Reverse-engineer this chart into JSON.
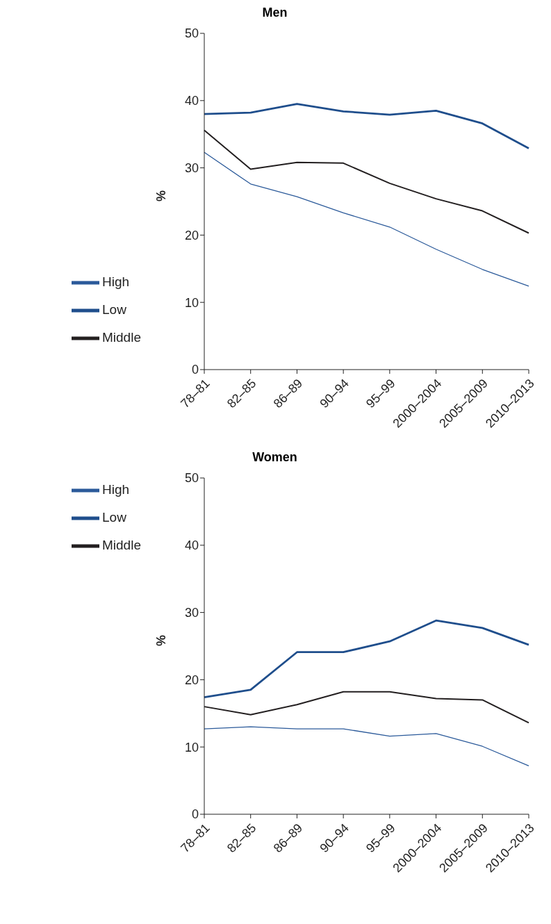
{
  "chart_data": [
    {
      "type": "line",
      "title": "Men",
      "ylabel": "%",
      "categories": [
        "78–81",
        "82–85",
        "86–89",
        "90–94",
        "95–99",
        "2000–2004",
        "2005–2009",
        "2010–2013"
      ],
      "ylim": [
        0,
        50
      ],
      "yticks": [
        0,
        10,
        20,
        30,
        40,
        50
      ],
      "legend": "bottom left",
      "grid": false,
      "marker": "none",
      "line_style": "solid",
      "series": [
        {
          "name": "Low",
          "color": "#1f4e8c",
          "values": [
            38.0,
            38.2,
            39.5,
            38.4,
            37.9,
            38.5,
            36.6,
            32.9
          ]
        },
        {
          "name": "Middle",
          "color": "#231f20",
          "values": [
            35.6,
            29.8,
            30.8,
            30.7,
            27.7,
            25.4,
            23.6,
            20.3
          ]
        },
        {
          "name": "High",
          "color": "#2b5a9a",
          "values": [
            32.3,
            27.6,
            25.7,
            23.3,
            21.2,
            17.9,
            14.9,
            12.4
          ]
        }
      ]
    },
    {
      "type": "line",
      "title": "Women",
      "ylabel": "%",
      "categories": [
        "78–81",
        "82–85",
        "86–89",
        "90–94",
        "95–99",
        "2000–2004",
        "2005–2009",
        "2010–2013"
      ],
      "ylim": [
        0,
        50
      ],
      "yticks": [
        0,
        10,
        20,
        30,
        40,
        50
      ],
      "legend": "top left",
      "grid": false,
      "marker": "none",
      "line_style": "solid",
      "series": [
        {
          "name": "Low",
          "color": "#1f4e8c",
          "values": [
            17.4,
            18.5,
            24.1,
            24.1,
            25.7,
            28.8,
            27.7,
            25.2
          ]
        },
        {
          "name": "Middle",
          "color": "#231f20",
          "values": [
            16.0,
            14.8,
            16.3,
            18.2,
            18.2,
            17.2,
            17.0,
            13.6
          ]
        },
        {
          "name": "High",
          "color": "#2b5a9a",
          "values": [
            12.7,
            13.0,
            12.7,
            12.7,
            11.6,
            12.0,
            10.1,
            7.2
          ]
        }
      ]
    }
  ]
}
